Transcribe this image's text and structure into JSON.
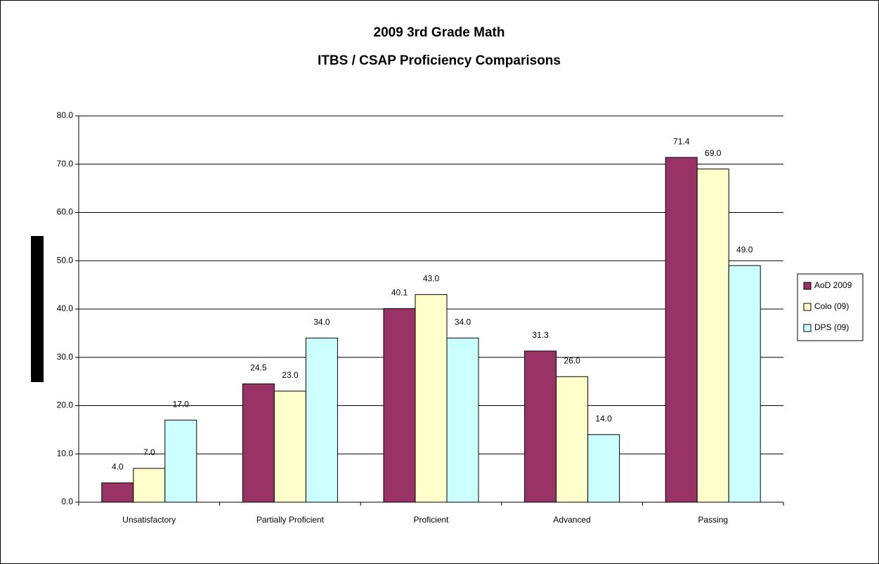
{
  "chart_data": {
    "type": "bar",
    "title": "2009 3rd Grade Math",
    "subtitle": "ITBS / CSAP Proficiency Comparisons",
    "categories": [
      "Unsatisfactory",
      "Partially Proficient",
      "Proficient",
      "Advanced",
      "Passing"
    ],
    "series": [
      {
        "name": "AoD 2009",
        "color": "#993366",
        "values": [
          4.0,
          24.5,
          40.1,
          31.3,
          71.4
        ],
        "value_labels": [
          "4.0",
          "24.5",
          "40.1",
          "31.3",
          "71.4"
        ]
      },
      {
        "name": "Colo (09)",
        "color": "#ffffcc",
        "values": [
          7.0,
          23.0,
          43.0,
          26.0,
          69.0
        ],
        "value_labels": [
          "7.0",
          "23.0",
          "43.0",
          "26.0",
          "69.0"
        ]
      },
      {
        "name": "DPS (09)",
        "color": "#ccffff",
        "values": [
          17.0,
          34.0,
          34.0,
          14.0,
          49.0
        ],
        "value_labels": [
          "17.0",
          "34.0",
          "34.0",
          "14.0",
          "49.0"
        ]
      }
    ],
    "ylim": [
      0,
      80
    ],
    "yticks": [
      {
        "value": 0,
        "label": "0.0"
      },
      {
        "value": 10,
        "label": "10.0"
      },
      {
        "value": 20,
        "label": "20.0"
      },
      {
        "value": 30,
        "label": "30.0"
      },
      {
        "value": 40,
        "label": "40.0"
      },
      {
        "value": 50,
        "label": "50.0"
      },
      {
        "value": 60,
        "label": "60.0"
      },
      {
        "value": 70,
        "label": "70.0"
      },
      {
        "value": 80,
        "label": "80.0"
      }
    ],
    "grid": true,
    "legend": "right"
  }
}
